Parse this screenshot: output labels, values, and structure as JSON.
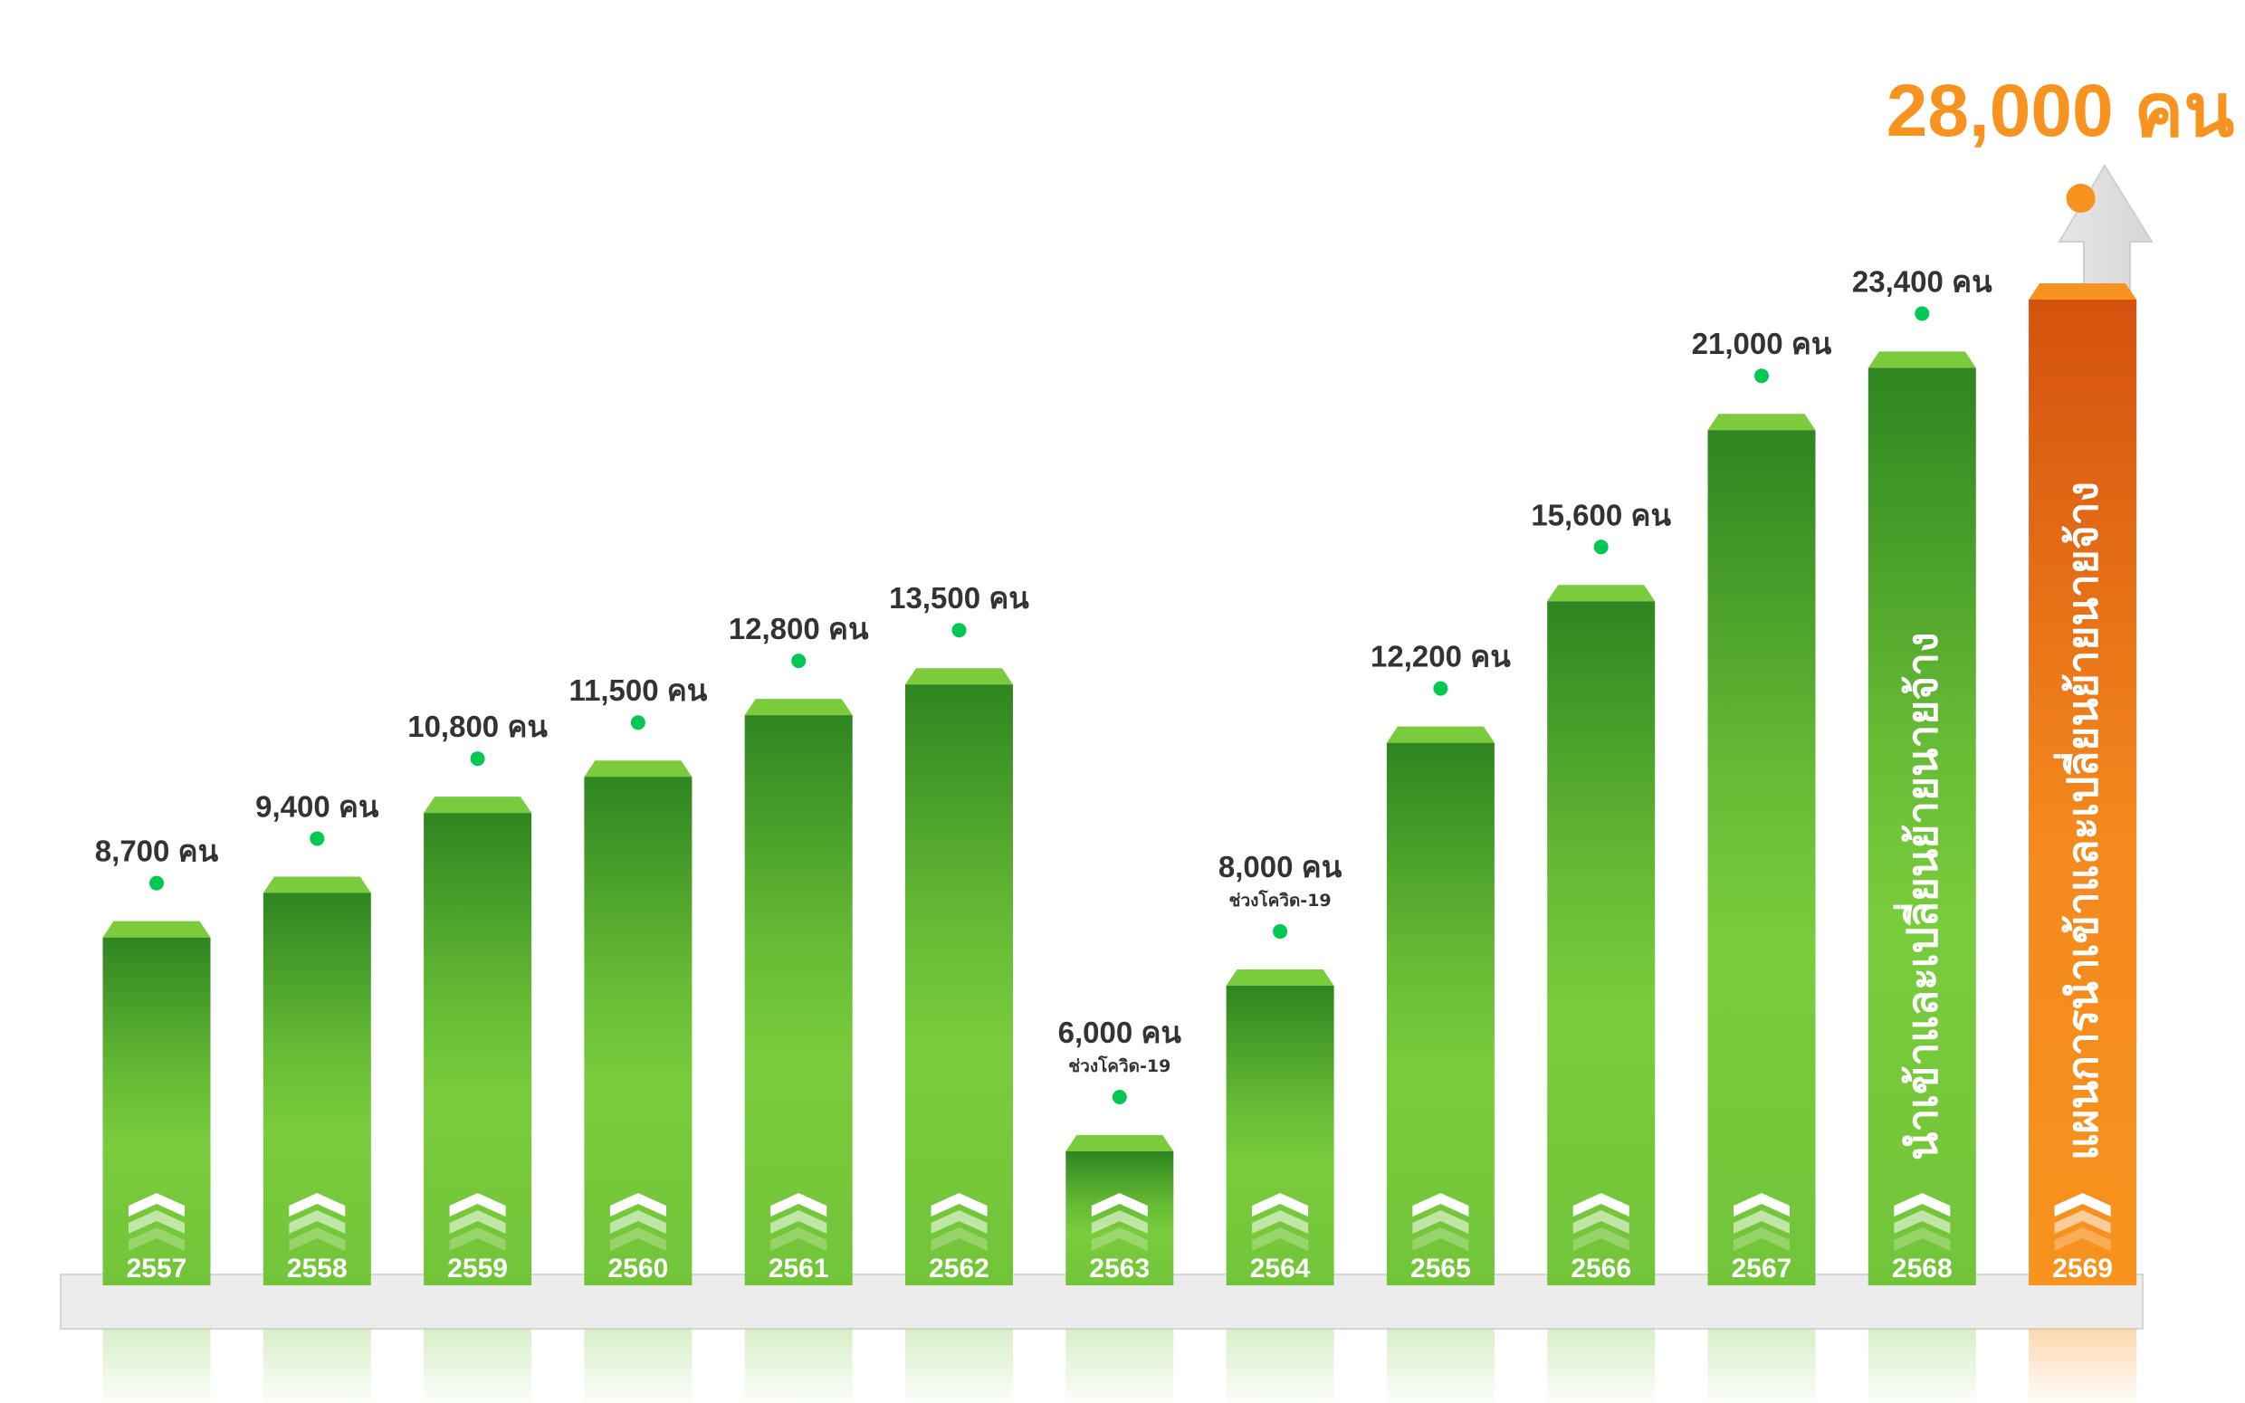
{
  "chart_data": {
    "type": "bar",
    "title": "",
    "xlabel": "",
    "ylabel": "",
    "unit": "คน",
    "categories": [
      "2557",
      "2558",
      "2559",
      "2560",
      "2561",
      "2562",
      "2563",
      "2564",
      "2565",
      "2566",
      "2567",
      "2568",
      "2569"
    ],
    "values": [
      8700,
      9400,
      10800,
      11500,
      12800,
      13500,
      6000,
      8000,
      12200,
      15600,
      21000,
      23400,
      28000
    ],
    "labels": [
      "8,700 คน",
      "9,400 คน",
      "10,800 คน",
      "11,500 คน",
      "12,800 คน",
      "13,500 คน",
      "6,000 คน",
      "8,000 คน",
      "12,200 คน",
      "15,600 คน",
      "21,000 คน",
      "23,400 คน",
      "28,000 คน"
    ],
    "sublabels": [
      "",
      "",
      "",
      "",
      "",
      "",
      "ช่วงโควิด-19",
      "ช่วงโควิด-19",
      "",
      "",
      "",
      "",
      ""
    ],
    "bar_text": [
      "",
      "",
      "",
      "",
      "",
      "",
      "",
      "",
      "",
      "",
      "",
      "นำเข้าและเปลี่ยนย้ายนายจ้าง",
      "แผนการนำเข้าและเปลี่ยนย้ายนายจ้าง"
    ],
    "highlight_index": 12,
    "colors": {
      "bar": "#6cc133",
      "bar_dark": "#2f8520",
      "highlight": "#f7931e",
      "highlight_dark": "#d4520e",
      "dot": "#00c853",
      "label": "#333333"
    }
  }
}
